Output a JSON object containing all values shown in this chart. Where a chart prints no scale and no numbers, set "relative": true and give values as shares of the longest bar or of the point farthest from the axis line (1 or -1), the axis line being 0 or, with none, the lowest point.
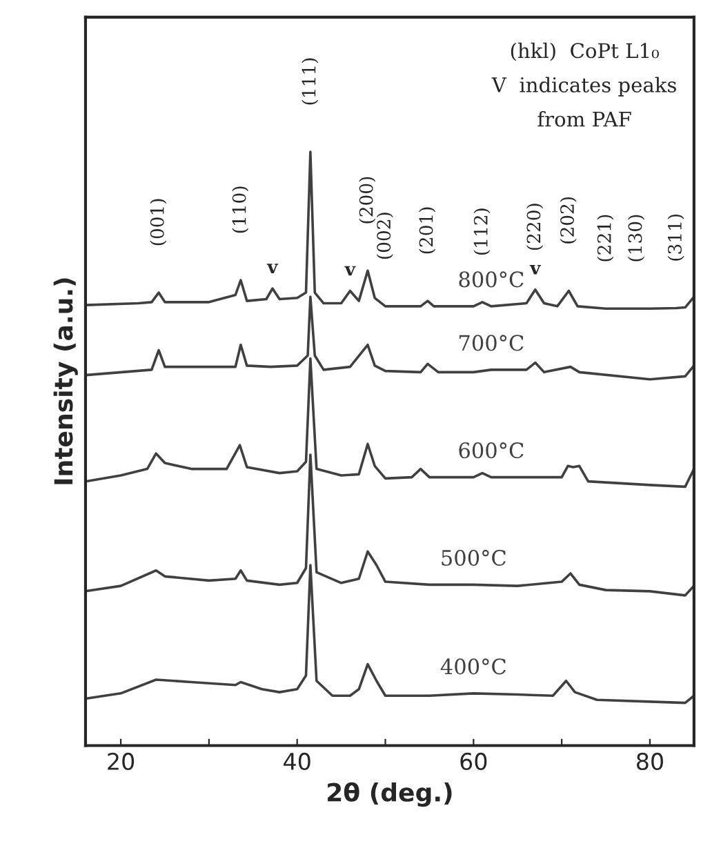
{
  "chart_data": {
    "type": "line",
    "relative": true,
    "xlabel": "2θ (deg.)",
    "ylabel": "Intensity (a.u.)",
    "xlim": [
      16,
      85
    ],
    "xticks": [
      20,
      {
        "value": 30,
        "label": null
      },
      40,
      {
        "value": 50,
        "label": null
      },
      60,
      {
        "value": 70,
        "label": null
      },
      80
    ],
    "grid": false,
    "legend": false,
    "marker": "none",
    "line_style": "solid",
    "series": [
      {
        "name": "800°C",
        "color": "#404040",
        "x": [
          16,
          22,
          23.5,
          24.3,
          25,
          30,
          33,
          33.6,
          34.3,
          36.5,
          37.2,
          38,
          40,
          41,
          41.5,
          42,
          43,
          45,
          46,
          47,
          48,
          48.8,
          50,
          54,
          54.8,
          55.5,
          60,
          61,
          62,
          66,
          67,
          68,
          69.5,
          70.8,
          71.8,
          75,
          78.5,
          80,
          83,
          84,
          85
        ],
        "values": [
          0.742,
          0.745,
          0.747,
          0.763,
          0.747,
          0.747,
          0.759,
          0.784,
          0.749,
          0.752,
          0.77,
          0.752,
          0.754,
          0.763,
          1.0,
          0.763,
          0.745,
          0.745,
          0.766,
          0.749,
          0.8,
          0.754,
          0.74,
          0.74,
          0.749,
          0.74,
          0.74,
          0.747,
          0.74,
          0.745,
          0.768,
          0.745,
          0.74,
          0.766,
          0.74,
          0.736,
          0.736,
          0.736,
          0.737,
          0.738,
          0.756
        ]
      },
      {
        "name": "700°C",
        "color": "#404040",
        "x": [
          16,
          23.5,
          24.3,
          25,
          30,
          33,
          33.6,
          34.3,
          37,
          40,
          41.2,
          41.5,
          42,
          43,
          46,
          48,
          48.8,
          50,
          54,
          54.8,
          56,
          60,
          62,
          66,
          67,
          68,
          71,
          72,
          80,
          84,
          85
        ],
        "values": [
          0.624,
          0.633,
          0.666,
          0.638,
          0.638,
          0.638,
          0.675,
          0.64,
          0.638,
          0.64,
          0.657,
          0.756,
          0.657,
          0.633,
          0.638,
          0.675,
          0.64,
          0.631,
          0.629,
          0.643,
          0.629,
          0.629,
          0.633,
          0.633,
          0.645,
          0.629,
          0.638,
          0.629,
          0.617,
          0.622,
          0.64
        ]
      },
      {
        "name": "600°C",
        "color": "#404040",
        "x": [
          16,
          20,
          23,
          24,
          25,
          28,
          32,
          33.5,
          34.3,
          38,
          40,
          41,
          41.5,
          42.2,
          45,
          47,
          48,
          48.8,
          50,
          53,
          54,
          55,
          60,
          61,
          62,
          70,
          70.7,
          71.3,
          72,
          73,
          80,
          84,
          85
        ],
        "values": [
          0.445,
          0.455,
          0.466,
          0.492,
          0.476,
          0.466,
          0.466,
          0.506,
          0.469,
          0.459,
          0.462,
          0.478,
          0.652,
          0.466,
          0.455,
          0.457,
          0.508,
          0.471,
          0.45,
          0.452,
          0.466,
          0.452,
          0.452,
          0.459,
          0.452,
          0.452,
          0.471,
          0.469,
          0.471,
          0.445,
          0.439,
          0.436,
          0.466
        ]
      },
      {
        "name": "500°C",
        "color": "#404040",
        "x": [
          16,
          20,
          24,
          25,
          30,
          33,
          33.6,
          34.3,
          38,
          40,
          41,
          41.5,
          42.2,
          45,
          47,
          48,
          49,
          50,
          55,
          60,
          65,
          70,
          71,
          72,
          75,
          80,
          84,
          85
        ],
        "values": [
          0.26,
          0.269,
          0.295,
          0.285,
          0.278,
          0.281,
          0.295,
          0.278,
          0.271,
          0.274,
          0.299,
          0.49,
          0.292,
          0.274,
          0.281,
          0.327,
          0.304,
          0.276,
          0.271,
          0.271,
          0.269,
          0.276,
          0.29,
          0.271,
          0.262,
          0.26,
          0.253,
          0.269
        ]
      },
      {
        "name": "400°C",
        "color": "#404040",
        "x": [
          16,
          20,
          24,
          28,
          33,
          33.6,
          36,
          38,
          40,
          41,
          41.5,
          42.2,
          44,
          46,
          47,
          48,
          49,
          50,
          55,
          60,
          65,
          69,
          70.5,
          71.5,
          74,
          80,
          84,
          85
        ],
        "values": [
          0.079,
          0.088,
          0.111,
          0.107,
          0.102,
          0.107,
          0.095,
          0.09,
          0.095,
          0.118,
          0.304,
          0.109,
          0.084,
          0.084,
          0.095,
          0.137,
          0.109,
          0.084,
          0.084,
          0.088,
          0.086,
          0.084,
          0.109,
          0.09,
          0.077,
          0.074,
          0.072,
          0.084
        ]
      }
    ],
    "annotations": [
      {
        "text": "(001)",
        "x": 24.3,
        "y": 0.763
      },
      {
        "text": "(110)",
        "x": 33.6,
        "y": 0.784
      },
      {
        "text": "v",
        "x": 37.2,
        "y": 0.77
      },
      {
        "text": "(111)",
        "x": 41.5,
        "y": 1.0
      },
      {
        "text": "v",
        "x": 46,
        "y": 0.766
      },
      {
        "text": "(200)",
        "x": 48,
        "y": 0.8
      },
      {
        "text": "(002)",
        "x": 50,
        "y": 0.74
      },
      {
        "text": "(201)",
        "x": 54.8,
        "y": 0.749
      },
      {
        "text": "(112)",
        "x": 61,
        "y": 0.747
      },
      {
        "text": "v",
        "x": 67,
        "y": 0.768
      },
      {
        "text": "(220)",
        "x": 67,
        "y": 0.768
      },
      {
        "text": "(202)",
        "x": 70.8,
        "y": 0.766
      },
      {
        "text": "(221)",
        "x": 75,
        "y": 0.736
      },
      {
        "text": "(130)",
        "x": 78.5,
        "y": 0.736
      },
      {
        "text": "(311)",
        "x": 83,
        "y": 0.737
      },
      "(hkl)  CoPt L1₀",
      "V  indicates peaks",
      "from PAF"
    ]
  }
}
